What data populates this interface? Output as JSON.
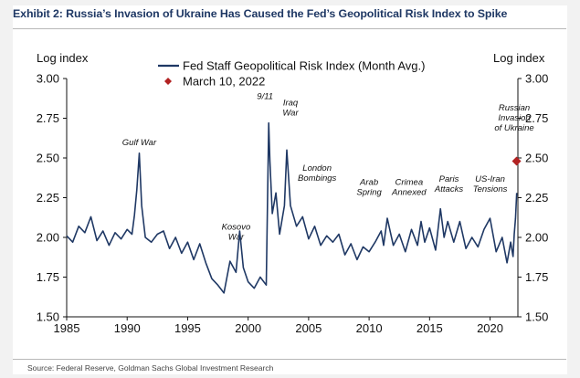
{
  "exhibit_title": "Exhibit 2: Russia’s Invasion of Ukraine Has Caused the Fed’s Geopolitical Risk Index to Spike",
  "source": "Source: Federal Reserve, Goldman Sachs Global Investment Research",
  "colors": {
    "title": "#1f3864",
    "series": "#1f3864",
    "marker": "#b22222"
  },
  "chart_data": {
    "type": "line",
    "title": "Exhibit 2: Russia’s Invasion of Ukraine Has Caused the Fed’s Geopolitical Risk Index to Spike",
    "ylabel_left": "Log index",
    "ylabel_right": "Log index",
    "xlim": [
      1985,
      2022.3
    ],
    "ylim": [
      1.5,
      3.0
    ],
    "x_ticks": [
      1985,
      1990,
      1995,
      2000,
      2005,
      2010,
      2015,
      2020
    ],
    "y_ticks": [
      1.5,
      1.75,
      2.0,
      2.25,
      2.5,
      2.75,
      3.0
    ],
    "y_tick_labels": [
      "1.50",
      "1.75",
      "2.00",
      "2.25",
      "2.50",
      "2.75",
      "3.00"
    ],
    "grid": false,
    "legend_position": "top-center",
    "series": [
      {
        "name": "Fed Staff Geopolitical Risk Index (Month Avg.)",
        "style": "line",
        "x": [
          1985.0,
          1985.5,
          1986.0,
          1986.5,
          1987.0,
          1987.5,
          1988.0,
          1988.5,
          1989.0,
          1989.5,
          1990.0,
          1990.4,
          1990.6,
          1990.8,
          1991.0,
          1991.2,
          1991.5,
          1992.0,
          1992.5,
          1993.0,
          1993.5,
          1994.0,
          1994.5,
          1995.0,
          1995.5,
          1996.0,
          1996.5,
          1997.0,
          1997.5,
          1998.0,
          1998.5,
          1999.0,
          1999.3,
          1999.6,
          2000.0,
          2000.5,
          2001.0,
          2001.5,
          2001.7,
          2001.8,
          2002.0,
          2002.3,
          2002.6,
          2003.0,
          2003.2,
          2003.5,
          2004.0,
          2004.5,
          2005.0,
          2005.5,
          2006.0,
          2006.5,
          2007.0,
          2007.5,
          2008.0,
          2008.5,
          2009.0,
          2009.5,
          2010.0,
          2010.5,
          2011.0,
          2011.2,
          2011.5,
          2012.0,
          2012.5,
          2013.0,
          2013.5,
          2014.0,
          2014.3,
          2014.6,
          2015.0,
          2015.5,
          2015.9,
          2016.2,
          2016.5,
          2017.0,
          2017.5,
          2018.0,
          2018.5,
          2019.0,
          2019.5,
          2020.0,
          2020.5,
          2021.0,
          2021.4,
          2021.7,
          2021.9,
          2022.0,
          2022.1,
          2022.2
        ],
        "y": [
          2.01,
          1.97,
          2.07,
          2.03,
          2.13,
          1.98,
          2.04,
          1.95,
          2.03,
          1.99,
          2.05,
          2.02,
          2.14,
          2.3,
          2.53,
          2.2,
          2.0,
          1.97,
          2.02,
          2.04,
          1.93,
          2.0,
          1.9,
          1.97,
          1.86,
          1.96,
          1.84,
          1.74,
          1.7,
          1.65,
          1.85,
          1.78,
          2.04,
          1.81,
          1.72,
          1.68,
          1.75,
          1.7,
          2.72,
          2.48,
          2.15,
          2.28,
          2.02,
          2.2,
          2.55,
          2.2,
          2.07,
          2.13,
          1.99,
          2.07,
          1.95,
          2.01,
          1.97,
          2.02,
          1.89,
          1.96,
          1.86,
          1.94,
          1.91,
          1.97,
          2.04,
          1.95,
          2.12,
          1.95,
          2.02,
          1.91,
          2.05,
          1.95,
          2.1,
          1.97,
          2.06,
          1.92,
          2.18,
          2.0,
          2.1,
          1.97,
          2.1,
          1.93,
          2.0,
          1.94,
          2.05,
          2.12,
          1.91,
          2.0,
          1.84,
          1.97,
          1.88,
          2.02,
          2.12,
          2.28
        ]
      },
      {
        "name": "March 10, 2022",
        "style": "marker",
        "x": [
          2022.19
        ],
        "y": [
          2.48
        ]
      }
    ],
    "annotations": [
      {
        "text": "Gulf War",
        "x": 1991.0,
        "y": 2.58
      },
      {
        "text": "Kosovo\nWar",
        "x": 1999.0,
        "y": 2.05
      },
      {
        "text": "9/11",
        "x": 2001.4,
        "y": 2.87
      },
      {
        "text": "Iraq\nWar",
        "x": 2003.5,
        "y": 2.83
      },
      {
        "text": "London\nBombings",
        "x": 2005.7,
        "y": 2.42
      },
      {
        "text": "Arab\nSpring",
        "x": 2010.0,
        "y": 2.33
      },
      {
        "text": "Crimea\nAnnexed",
        "x": 2013.3,
        "y": 2.33
      },
      {
        "text": "Paris\nAttacks",
        "x": 2016.6,
        "y": 2.35
      },
      {
        "text": "US-Iran\nTensions",
        "x": 2020.0,
        "y": 2.35
      },
      {
        "text": "Russian\nInvasion\nof Ukraine",
        "x": 2022.0,
        "y": 2.8
      }
    ]
  }
}
